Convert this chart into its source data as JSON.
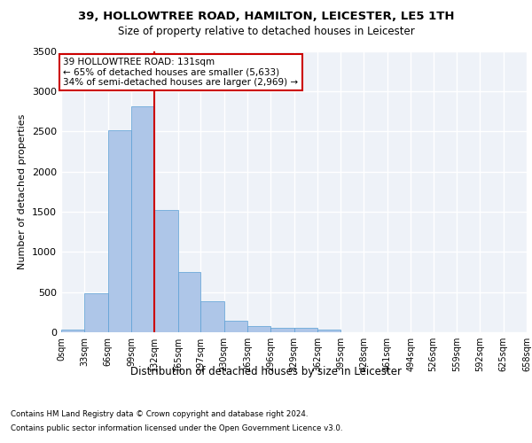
{
  "title_line1": "39, HOLLOWTREE ROAD, HAMILTON, LEICESTER, LE5 1TH",
  "title_line2": "Size of property relative to detached houses in Leicester",
  "xlabel": "Distribution of detached houses by size in Leicester",
  "ylabel": "Number of detached properties",
  "bar_values": [
    30,
    480,
    2510,
    2810,
    1520,
    750,
    390,
    140,
    75,
    55,
    55,
    30,
    0,
    0,
    0,
    0,
    0,
    0,
    0,
    0
  ],
  "bin_edges": [
    0,
    33,
    66,
    99,
    132,
    165,
    197,
    230,
    263,
    296,
    329,
    362,
    395,
    428,
    461,
    494,
    526,
    559,
    592,
    625,
    658
  ],
  "tick_labels": [
    "0sqm",
    "33sqm",
    "66sqm",
    "99sqm",
    "132sqm",
    "165sqm",
    "197sqm",
    "230sqm",
    "263sqm",
    "296sqm",
    "329sqm",
    "362sqm",
    "395sqm",
    "428sqm",
    "461sqm",
    "494sqm",
    "526sqm",
    "559sqm",
    "592sqm",
    "625sqm",
    "658sqm"
  ],
  "bar_color": "#aec6e8",
  "bar_edge_color": "#5a9fd4",
  "vline_color": "#cc0000",
  "vline_x": 131,
  "ylim": [
    0,
    3500
  ],
  "yticks": [
    0,
    500,
    1000,
    1500,
    2000,
    2500,
    3000,
    3500
  ],
  "annotation_text": "39 HOLLOWTREE ROAD: 131sqm\n← 65% of detached houses are smaller (5,633)\n34% of semi-detached houses are larger (2,969) →",
  "annotation_box_color": "#cc0000",
  "footnote1": "Contains HM Land Registry data © Crown copyright and database right 2024.",
  "footnote2": "Contains public sector information licensed under the Open Government Licence v3.0.",
  "bg_color": "#eef2f8",
  "grid_color": "#ffffff",
  "fig_bg_color": "#ffffff"
}
